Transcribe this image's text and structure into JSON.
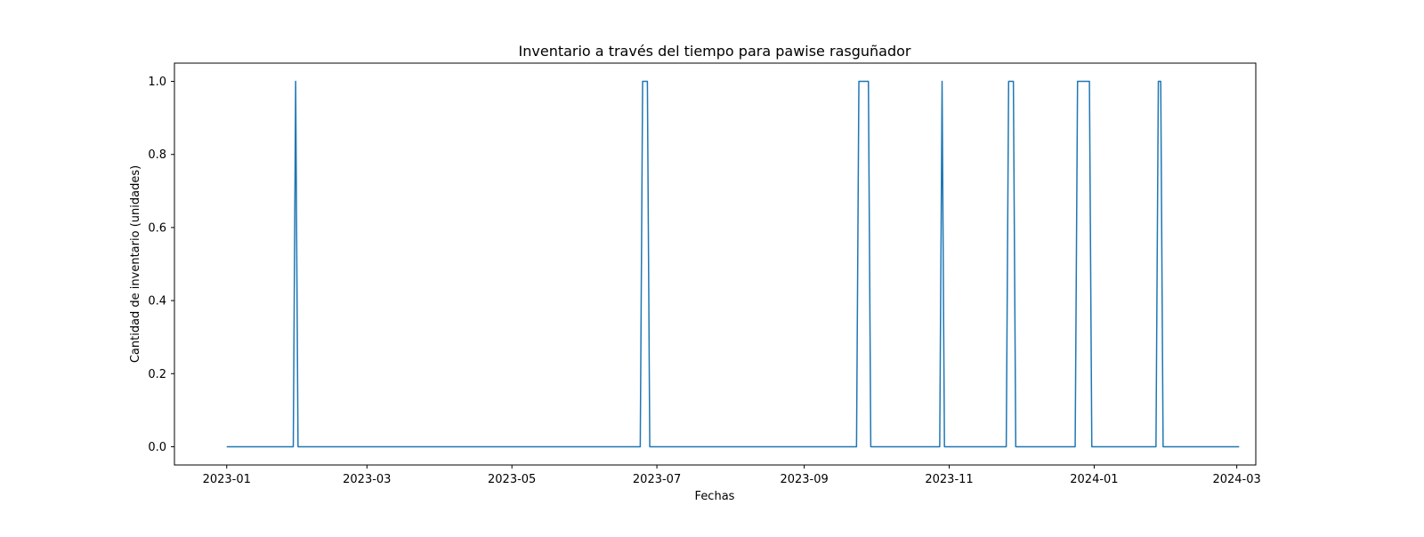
{
  "chart_data": {
    "type": "line",
    "title": "Inventario a través del tiempo para pawise rasguñador",
    "xlabel": "Fechas",
    "ylabel": "Cantidad de inventario (unidades)",
    "xlim": [
      "2022-12-10",
      "2024-03-09"
    ],
    "ylim": [
      -0.05,
      1.05
    ],
    "x_ticks": [
      "2023-01-01",
      "2023-03-01",
      "2023-05-01",
      "2023-07-01",
      "2023-09-01",
      "2023-11-01",
      "2024-01-01",
      "2024-03-01"
    ],
    "x_tick_labels": [
      "2023-01",
      "2023-03",
      "2023-05",
      "2023-07",
      "2023-09",
      "2023-11",
      "2024-01",
      "2024-03"
    ],
    "y_ticks": [
      0.0,
      0.2,
      0.4,
      0.6,
      0.8,
      1.0
    ],
    "y_tick_labels": [
      "0.0",
      "0.2",
      "0.4",
      "0.6",
      "0.8",
      "1.0"
    ],
    "grid": false,
    "series": [
      {
        "color": "#1f77b4",
        "x": [
          "2023-01-01",
          "2023-01-29",
          "2023-01-30",
          "2023-01-31",
          "2023-06-24",
          "2023-06-25",
          "2023-06-27",
          "2023-06-28",
          "2023-09-23",
          "2023-09-24",
          "2023-09-28",
          "2023-09-29",
          "2023-10-28",
          "2023-10-29",
          "2023-10-30",
          "2023-11-25",
          "2023-11-26",
          "2023-11-28",
          "2023-11-29",
          "2023-12-24",
          "2023-12-25",
          "2023-12-30",
          "2023-12-31",
          "2024-01-27",
          "2024-01-28",
          "2024-01-29",
          "2024-01-30",
          "2024-03-02"
        ],
        "y": [
          0,
          0,
          1,
          0,
          0,
          1,
          1,
          0,
          0,
          1,
          1,
          0,
          0,
          1,
          0,
          0,
          1,
          1,
          0,
          0,
          1,
          1,
          0,
          0,
          1,
          1,
          0,
          0
        ]
      }
    ]
  }
}
